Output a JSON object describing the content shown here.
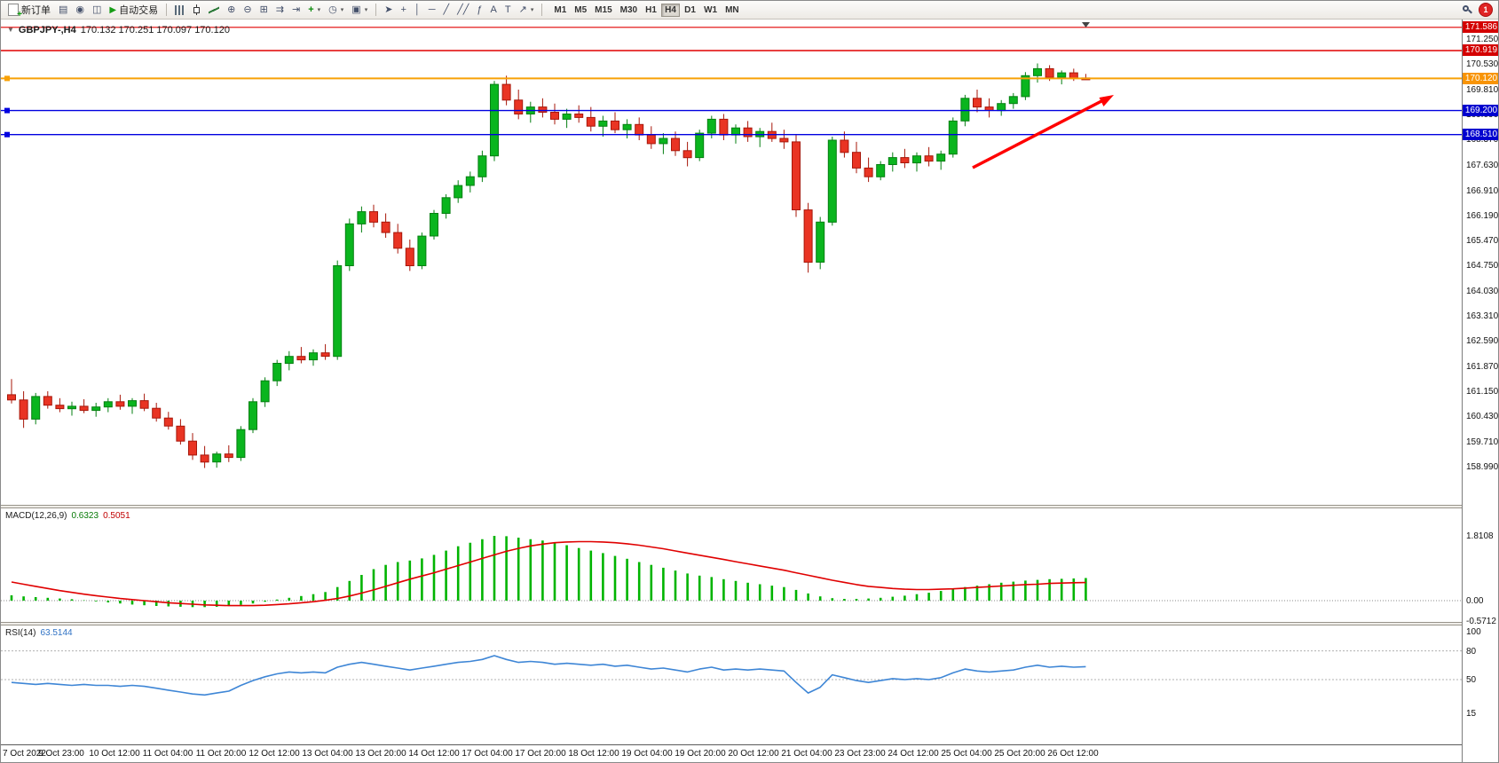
{
  "toolbar": {
    "new_order_label": "新订单",
    "auto_trading_label": "自动交易",
    "icon_buttons_left": [
      {
        "name": "print",
        "glyph": "▤"
      },
      {
        "name": "market-watch",
        "glyph": "◉"
      },
      {
        "name": "navigator",
        "glyph": "◫"
      }
    ],
    "icon_buttons_chart": [
      {
        "name": "bar-chart",
        "css": "ic-bars"
      },
      {
        "name": "candlestick-chart",
        "css": "ic-candle"
      },
      {
        "name": "line-chart",
        "css": "ic-line"
      },
      {
        "name": "zoom-in",
        "glyph": "⊕"
      },
      {
        "name": "zoom-out",
        "glyph": "⊖"
      },
      {
        "name": "tile-windows",
        "glyph": "⊞"
      },
      {
        "name": "auto-scroll",
        "glyph": "⇉"
      },
      {
        "name": "chart-shift",
        "glyph": "⇥"
      },
      {
        "name": "indicators",
        "glyph": "+",
        "caret": true,
        "color": "#0a8a0a"
      },
      {
        "name": "periods",
        "glyph": "◷",
        "caret": true
      },
      {
        "name": "templates",
        "glyph": "▣",
        "caret": true
      }
    ],
    "icon_buttons_tools": [
      {
        "name": "cursor",
        "glyph": "➤"
      },
      {
        "name": "crosshair",
        "glyph": "+"
      },
      {
        "name": "vertical-line",
        "glyph": "│"
      },
      {
        "name": "horizontal-line",
        "glyph": "─"
      },
      {
        "name": "trendline",
        "glyph": "╱"
      },
      {
        "name": "channel",
        "glyph": "╱╱"
      },
      {
        "name": "fibonacci",
        "glyph": "ƒ"
      },
      {
        "name": "text",
        "glyph": "A"
      },
      {
        "name": "text-label",
        "glyph": "T"
      },
      {
        "name": "arrows",
        "glyph": "↗",
        "caret": true
      }
    ],
    "timeframes": [
      "M1",
      "M5",
      "M15",
      "M30",
      "H1",
      "H4",
      "D1",
      "W1",
      "MN"
    ],
    "active_timeframe": "H4",
    "notification_count": "1"
  },
  "chart": {
    "title_symbol_period": "GBPJPY-,H4",
    "title_ohlc": "170.132 170.251 170.097 170.120"
  },
  "price_axis": {
    "ticks": [
      "171.250",
      "170.530",
      "169.810",
      "169.090",
      "168.370",
      "167.630",
      "166.910",
      "166.190",
      "165.470",
      "164.750",
      "164.030",
      "163.310",
      "162.590",
      "161.870",
      "161.150",
      "160.430",
      "159.710",
      "158.990"
    ],
    "badges": [
      {
        "label": "171.586",
        "bg": "#d40000"
      },
      {
        "label": "170.919",
        "bg": "#d40000"
      },
      {
        "label": "170.120",
        "bg": "#f89406"
      },
      {
        "label": "169.200",
        "bg": "#0000cf"
      },
      {
        "label": "168.510",
        "bg": "#0000cf"
      }
    ]
  },
  "levels": [
    {
      "price": "171.586",
      "color": "#e00000",
      "width": 1.2,
      "handle": false
    },
    {
      "price": "170.919",
      "color": "#e00000",
      "width": 1.4,
      "handle": false
    },
    {
      "price": "170.120",
      "color": "#f8a106",
      "width": 2,
      "handle": true
    },
    {
      "price": "169.200",
      "color": "#0000e0",
      "width": 1.4,
      "handle": true
    },
    {
      "price": "168.510",
      "color": "#0000e0",
      "width": 1.4,
      "handle": true
    }
  ],
  "time_axis": [
    "7 Oct 2022",
    "9 Oct 23:00",
    "10 Oct 12:00",
    "11 Oct 04:00",
    "11 Oct 20:00",
    "12 Oct 12:00",
    "13 Oct 04:00",
    "13 Oct 20:00",
    "14 Oct 12:00",
    "17 Oct 04:00",
    "17 Oct 20:00",
    "18 Oct 12:00",
    "19 Oct 04:00",
    "19 Oct 20:00",
    "20 Oct 12:00",
    "21 Oct 04:00",
    "23 Oct 23:00",
    "24 Oct 12:00",
    "25 Oct 04:00",
    "25 Oct 20:00",
    "26 Oct 12:00"
  ],
  "macd": {
    "label": "MACD(12,26,9)",
    "main_value": "0.6323",
    "signal_value": "0.5051",
    "scale": [
      "1.8108",
      "0.00",
      "-0.5712"
    ]
  },
  "rsi": {
    "label": "RSI(14)",
    "value": "63.5144",
    "scale": [
      "100",
      "80",
      "50",
      "15"
    ]
  },
  "annotation": {
    "type": "trend-arrow",
    "color": "#ff0000",
    "direction": "up-right"
  },
  "chart_data": {
    "type": "candlestick",
    "symbol": "GBPJPY-",
    "timeframe": "H4",
    "title": "GBPJPY-,H4 170.132 170.251 170.097 170.120",
    "last_bar": {
      "open": 170.132,
      "high": 170.251,
      "low": 170.097,
      "close": 170.12
    },
    "ylim_price": [
      157.893,
      171.784
    ],
    "up_color": "#0ab51e",
    "up_border": "#067f12",
    "down_color": "#e93423",
    "down_border": "#a7170a",
    "horizontal_levels": {
      "red": [
        171.586,
        170.919
      ],
      "orange": [
        170.12
      ],
      "blue": [
        169.2,
        168.51
      ]
    },
    "ohlc": [
      [
        161.05,
        161.5,
        160.8,
        160.9
      ],
      [
        160.9,
        161.15,
        160.1,
        160.35
      ],
      [
        160.35,
        161.1,
        160.2,
        161.0
      ],
      [
        161.0,
        161.15,
        160.65,
        160.75
      ],
      [
        160.75,
        160.95,
        160.55,
        160.65
      ],
      [
        160.65,
        160.85,
        160.45,
        160.72
      ],
      [
        160.72,
        160.92,
        160.52,
        160.6
      ],
      [
        160.6,
        160.82,
        160.42,
        160.7
      ],
      [
        160.7,
        160.95,
        160.55,
        160.85
      ],
      [
        160.85,
        161.05,
        160.62,
        160.72
      ],
      [
        160.72,
        160.95,
        160.5,
        160.88
      ],
      [
        160.88,
        161.08,
        160.58,
        160.66
      ],
      [
        160.66,
        160.82,
        160.28,
        160.38
      ],
      [
        160.38,
        160.56,
        160.05,
        160.15
      ],
      [
        160.15,
        160.35,
        159.62,
        159.72
      ],
      [
        159.72,
        159.95,
        159.18,
        159.32
      ],
      [
        159.32,
        159.58,
        158.95,
        159.12
      ],
      [
        159.12,
        159.42,
        158.96,
        159.35
      ],
      [
        159.35,
        159.6,
        159.12,
        159.25
      ],
      [
        159.25,
        160.15,
        159.15,
        160.05
      ],
      [
        160.05,
        160.95,
        159.95,
        160.85
      ],
      [
        160.85,
        161.55,
        160.7,
        161.45
      ],
      [
        161.45,
        162.05,
        161.3,
        161.95
      ],
      [
        161.95,
        162.3,
        161.75,
        162.15
      ],
      [
        162.15,
        162.42,
        161.95,
        162.05
      ],
      [
        162.05,
        162.35,
        161.88,
        162.25
      ],
      [
        162.25,
        162.5,
        162.05,
        162.15
      ],
      [
        162.15,
        164.9,
        162.05,
        164.75
      ],
      [
        164.75,
        166.1,
        164.6,
        165.95
      ],
      [
        165.95,
        166.45,
        165.7,
        166.3
      ],
      [
        166.3,
        166.5,
        165.85,
        166.0
      ],
      [
        166.0,
        166.25,
        165.55,
        165.7
      ],
      [
        165.7,
        165.95,
        165.1,
        165.25
      ],
      [
        165.25,
        165.5,
        164.6,
        164.75
      ],
      [
        164.75,
        165.7,
        164.65,
        165.6
      ],
      [
        165.6,
        166.35,
        165.5,
        166.25
      ],
      [
        166.25,
        166.8,
        166.1,
        166.7
      ],
      [
        166.7,
        167.2,
        166.55,
        167.05
      ],
      [
        167.05,
        167.45,
        166.85,
        167.3
      ],
      [
        167.3,
        168.05,
        167.15,
        167.9
      ],
      [
        167.9,
        170.05,
        167.75,
        169.95
      ],
      [
        169.95,
        170.2,
        169.35,
        169.5
      ],
      [
        169.5,
        169.8,
        168.95,
        169.1
      ],
      [
        169.1,
        169.45,
        168.85,
        169.3
      ],
      [
        169.3,
        169.55,
        169.0,
        169.15
      ],
      [
        169.15,
        169.4,
        168.8,
        168.95
      ],
      [
        168.95,
        169.25,
        168.7,
        169.1
      ],
      [
        169.1,
        169.35,
        168.85,
        169.0
      ],
      [
        169.0,
        169.3,
        168.6,
        168.75
      ],
      [
        168.75,
        169.05,
        168.45,
        168.9
      ],
      [
        168.9,
        169.15,
        168.55,
        168.65
      ],
      [
        168.65,
        168.95,
        168.4,
        168.8
      ],
      [
        168.8,
        169.0,
        168.35,
        168.5
      ],
      [
        168.5,
        168.75,
        168.1,
        168.25
      ],
      [
        168.25,
        168.55,
        167.95,
        168.4
      ],
      [
        168.4,
        168.6,
        167.9,
        168.05
      ],
      [
        168.05,
        168.3,
        167.6,
        167.85
      ],
      [
        167.85,
        168.65,
        167.75,
        168.55
      ],
      [
        168.55,
        169.05,
        168.4,
        168.95
      ],
      [
        168.95,
        169.1,
        168.35,
        168.5
      ],
      [
        168.5,
        168.8,
        168.25,
        168.7
      ],
      [
        168.7,
        168.9,
        168.3,
        168.45
      ],
      [
        168.45,
        168.7,
        168.15,
        168.6
      ],
      [
        168.6,
        168.85,
        168.3,
        168.4
      ],
      [
        168.4,
        168.65,
        168.1,
        168.3
      ],
      [
        168.3,
        168.5,
        166.15,
        166.35
      ],
      [
        166.35,
        166.55,
        164.55,
        164.85
      ],
      [
        164.85,
        166.15,
        164.65,
        166.0
      ],
      [
        166.0,
        168.45,
        165.9,
        168.35
      ],
      [
        168.35,
        168.6,
        167.85,
        168.0
      ],
      [
        168.0,
        168.3,
        167.4,
        167.55
      ],
      [
        167.55,
        167.85,
        167.15,
        167.3
      ],
      [
        167.3,
        167.75,
        167.2,
        167.65
      ],
      [
        167.65,
        168.0,
        167.45,
        167.85
      ],
      [
        167.85,
        168.1,
        167.55,
        167.7
      ],
      [
        167.7,
        168.0,
        167.45,
        167.9
      ],
      [
        167.9,
        168.15,
        167.6,
        167.75
      ],
      [
        167.75,
        168.05,
        167.5,
        167.95
      ],
      [
        167.95,
        169.0,
        167.85,
        168.9
      ],
      [
        168.9,
        169.65,
        168.75,
        169.55
      ],
      [
        169.55,
        169.8,
        169.15,
        169.3
      ],
      [
        169.3,
        169.55,
        169.0,
        169.2
      ],
      [
        169.2,
        169.5,
        169.05,
        169.4
      ],
      [
        169.4,
        169.7,
        169.25,
        169.6
      ],
      [
        169.6,
        170.3,
        169.5,
        170.2
      ],
      [
        170.2,
        170.55,
        170.0,
        170.4
      ],
      [
        170.4,
        170.5,
        170.05,
        170.15
      ],
      [
        170.15,
        170.35,
        169.95,
        170.28
      ],
      [
        170.28,
        170.4,
        170.05,
        170.13
      ],
      [
        170.132,
        170.251,
        170.097,
        170.12
      ]
    ],
    "indicators": [
      {
        "name": "MACD",
        "params": [
          12,
          26,
          9
        ],
        "ylim": [
          -0.5712,
          1.8108
        ],
        "histogram_color": "#00b400",
        "signal_color": "#e00000",
        "histogram": [
          0.15,
          0.12,
          0.1,
          0.08,
          0.06,
          0.04,
          0.01,
          -0.02,
          -0.05,
          -0.08,
          -0.11,
          -0.13,
          -0.15,
          -0.16,
          -0.17,
          -0.18,
          -0.18,
          -0.17,
          -0.15,
          -0.12,
          -0.08,
          -0.03,
          0.03,
          0.08,
          0.13,
          0.18,
          0.24,
          0.38,
          0.55,
          0.72,
          0.88,
          1.0,
          1.08,
          1.12,
          1.18,
          1.28,
          1.4,
          1.52,
          1.62,
          1.72,
          1.81,
          1.8,
          1.76,
          1.72,
          1.68,
          1.62,
          1.55,
          1.47,
          1.4,
          1.33,
          1.25,
          1.17,
          1.08,
          1.0,
          0.92,
          0.84,
          0.76,
          0.7,
          0.66,
          0.6,
          0.55,
          0.5,
          0.46,
          0.42,
          0.38,
          0.3,
          0.2,
          0.12,
          0.07,
          0.05,
          0.05,
          0.06,
          0.08,
          0.11,
          0.14,
          0.18,
          0.22,
          0.27,
          0.32,
          0.38,
          0.42,
          0.46,
          0.5,
          0.53,
          0.56,
          0.58,
          0.6,
          0.61,
          0.62,
          0.6323
        ],
        "signal": [
          0.52,
          0.46,
          0.4,
          0.34,
          0.28,
          0.23,
          0.18,
          0.14,
          0.1,
          0.06,
          0.03,
          0.0,
          -0.03,
          -0.06,
          -0.08,
          -0.1,
          -0.12,
          -0.13,
          -0.14,
          -0.14,
          -0.14,
          -0.13,
          -0.11,
          -0.09,
          -0.06,
          -0.03,
          0.01,
          0.06,
          0.13,
          0.21,
          0.3,
          0.4,
          0.5,
          0.6,
          0.69,
          0.78,
          0.88,
          0.98,
          1.08,
          1.18,
          1.28,
          1.38,
          1.46,
          1.53,
          1.58,
          1.62,
          1.64,
          1.65,
          1.65,
          1.64,
          1.62,
          1.59,
          1.55,
          1.5,
          1.45,
          1.39,
          1.33,
          1.27,
          1.21,
          1.15,
          1.09,
          1.03,
          0.97,
          0.91,
          0.85,
          0.78,
          0.71,
          0.64,
          0.57,
          0.51,
          0.45,
          0.4,
          0.37,
          0.34,
          0.32,
          0.31,
          0.31,
          0.32,
          0.33,
          0.35,
          0.37,
          0.39,
          0.41,
          0.43,
          0.45,
          0.46,
          0.48,
          0.49,
          0.5,
          0.5051
        ]
      },
      {
        "name": "RSI",
        "params": [
          14
        ],
        "ylim": [
          15,
          100
        ],
        "levels": [
          80,
          50
        ],
        "line_color": "#3e86d6",
        "values": [
          47,
          46,
          45,
          46,
          45,
          44,
          45,
          44,
          44,
          43,
          44,
          43,
          41,
          39,
          37,
          35,
          34,
          36,
          38,
          44,
          49,
          53,
          56,
          58,
          57,
          58,
          57,
          63,
          66,
          68,
          66,
          64,
          62,
          60,
          62,
          64,
          66,
          68,
          69,
          71,
          75,
          71,
          68,
          69,
          68,
          66,
          67,
          66,
          65,
          66,
          64,
          65,
          63,
          61,
          62,
          60,
          58,
          61,
          63,
          60,
          61,
          60,
          61,
          60,
          59,
          47,
          36,
          42,
          55,
          52,
          49,
          47,
          49,
          51,
          50,
          51,
          50,
          52,
          57,
          61,
          59,
          58,
          59,
          60,
          63,
          65,
          63,
          64,
          63,
          63.5144
        ]
      }
    ]
  }
}
